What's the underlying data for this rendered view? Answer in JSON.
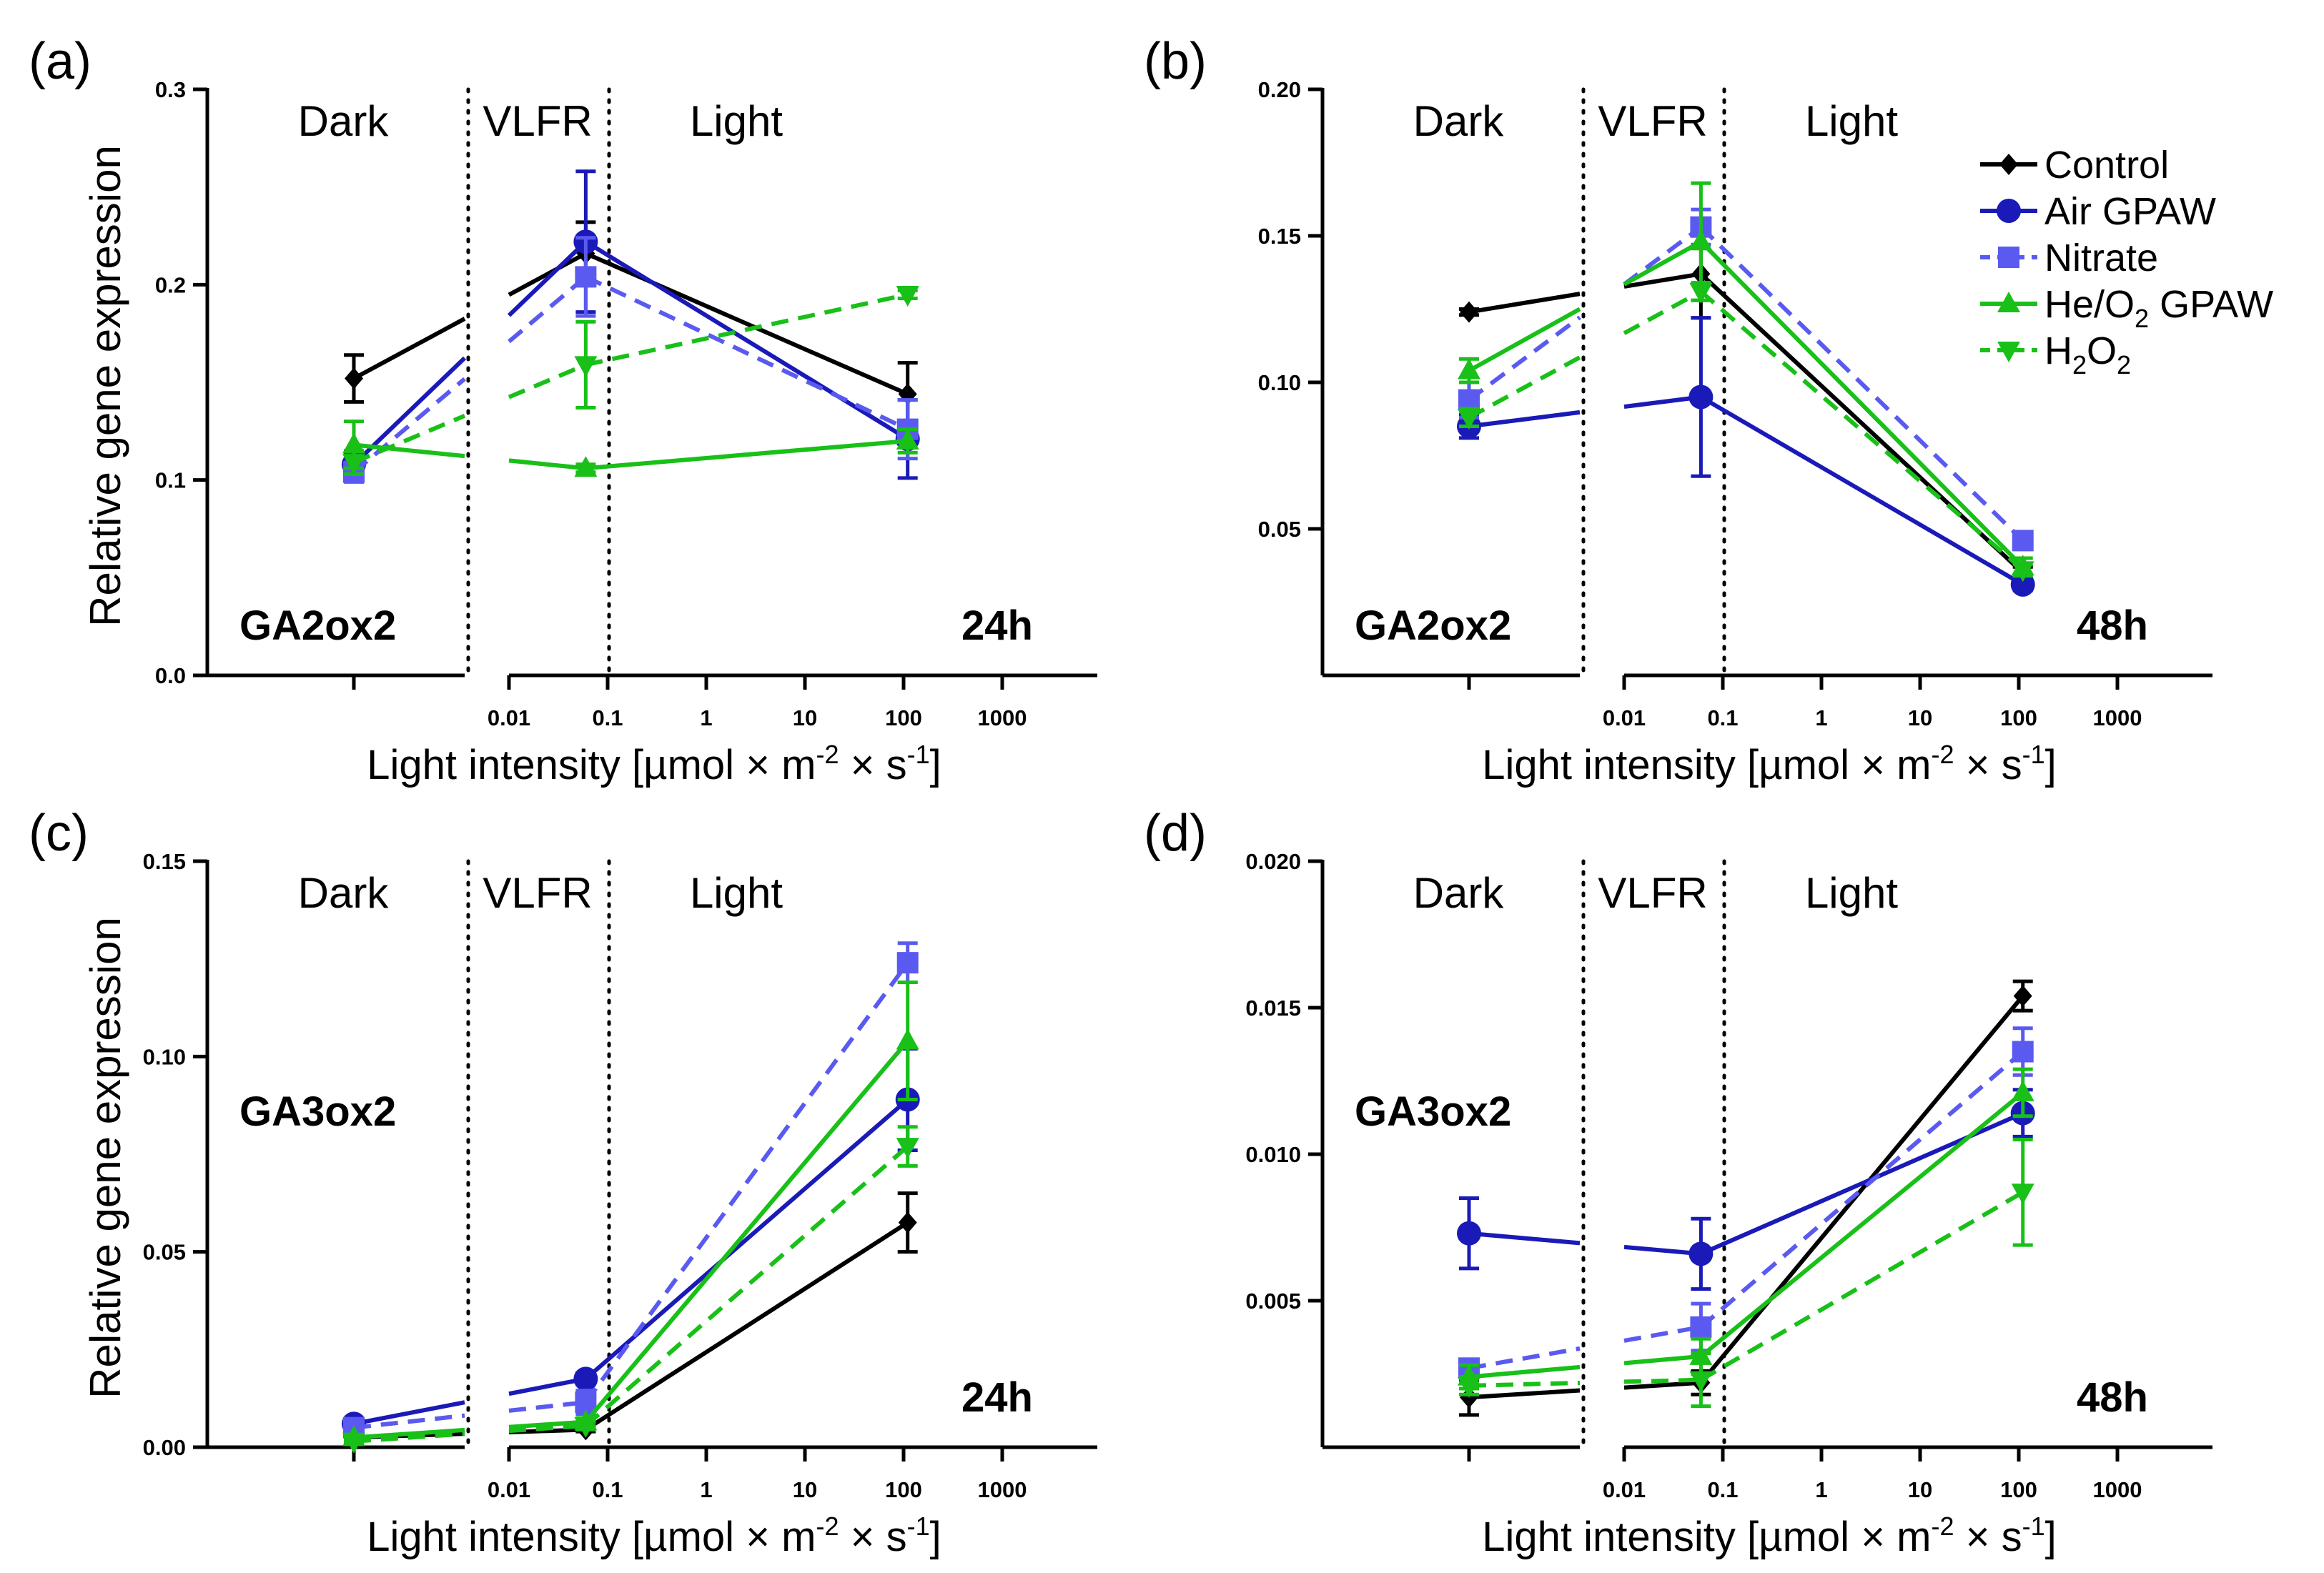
{
  "colors": {
    "Control": "#000000",
    "Air GPAW": "#1a1ab8",
    "Nitrate": "#5a5af0",
    "He/O2 GPAW": "#18c018",
    "H2O2": "#18c018"
  },
  "region_labels": {
    "dark": "Dark",
    "vlfr": "VLFR",
    "light": "Light"
  },
  "x_axis": {
    "label_main": "Light intensity [µmol × m",
    "label_sup1": "-2",
    "label_mid": " × s",
    "label_sup2": "-1",
    "label_end": "]",
    "ticks": [
      "0.01",
      "0.1",
      "1",
      "10",
      "100",
      "1000"
    ]
  },
  "y_axis_label": "Relative gene expression",
  "legend": {
    "position": "top-right of panel (b)",
    "entries": [
      {
        "key": "Control",
        "label": "Control",
        "marker": "diamond",
        "dash": false
      },
      {
        "key": "Air GPAW",
        "label": "Air GPAW",
        "marker": "circle",
        "dash": false
      },
      {
        "key": "Nitrate",
        "label": "Nitrate",
        "marker": "square",
        "dash": true
      },
      {
        "key": "He/O2 GPAW",
        "label_a": "He/O",
        "label_sub": "2",
        "label_b": " GPAW",
        "marker": "triangle-up",
        "dash": false
      },
      {
        "key": "H2O2",
        "label_a": "H",
        "label_sub": "2",
        "label_b": "O",
        "label_sub2": "2",
        "marker": "triangle-down",
        "dash": true
      }
    ]
  },
  "chart_data": [
    {
      "type": "line",
      "panel": "(a)",
      "gene": "GA2ox2",
      "time": "24h",
      "ylim": [
        0,
        0.3
      ],
      "yticks": [
        "0.0",
        "0.1",
        "0.2",
        "0.3"
      ],
      "ytick_values": [
        0,
        0.1,
        0.2,
        0.3
      ],
      "x": [
        "dark",
        0.06,
        110
      ],
      "series": [
        {
          "name": "Control",
          "values": [
            0.152,
            0.216,
            0.144
          ],
          "errors": [
            0.012,
            0.016,
            0.016
          ]
        },
        {
          "name": "Air GPAW",
          "values": [
            0.108,
            0.222,
            0.121
          ],
          "errors": [
            0.006,
            0.036,
            0.02
          ]
        },
        {
          "name": "Nitrate",
          "values": [
            0.104,
            0.204,
            0.126
          ],
          "errors": [
            0.005,
            0.02,
            0.015
          ]
        },
        {
          "name": "He/O2 GPAW",
          "values": [
            0.118,
            0.106,
            0.12
          ],
          "errors": [
            0.012,
            0.002,
            0.006
          ]
        },
        {
          "name": "H2O2",
          "values": [
            0.109,
            0.159,
            0.195
          ],
          "errors": [
            0.006,
            0.022,
            0.002
          ]
        }
      ]
    },
    {
      "type": "line",
      "panel": "(b)",
      "gene": "GA2ox2",
      "time": "48h",
      "ylim": [
        0,
        0.2
      ],
      "yticks": [
        "0.05",
        "0.10",
        "0.15",
        "0.20"
      ],
      "ytick_values": [
        0.05,
        0.1,
        0.15,
        0.2
      ],
      "x": [
        "dark",
        0.06,
        110
      ],
      "series": [
        {
          "name": "Control",
          "values": [
            0.124,
            0.137,
            0.035
          ],
          "errors": [
            0.001,
            0.015,
            0.002
          ]
        },
        {
          "name": "Air GPAW",
          "values": [
            0.085,
            0.095,
            0.031
          ],
          "errors": [
            0.004,
            0.027,
            0.002
          ]
        },
        {
          "name": "Nitrate",
          "values": [
            0.094,
            0.153,
            0.046
          ],
          "errors": [
            0.006,
            0.006,
            0.002
          ]
        },
        {
          "name": "He/O2 GPAW",
          "values": [
            0.104,
            0.148,
            0.037
          ],
          "errors": [
            0.004,
            0.02,
            0.003
          ]
        },
        {
          "name": "H2O2",
          "values": [
            0.088,
            0.131,
            0.036
          ],
          "errors": [
            0.003,
            0.003,
            0.002
          ]
        }
      ]
    },
    {
      "type": "line",
      "panel": "(c)",
      "gene": "GA3ox2",
      "time": "24h",
      "ylim": [
        0,
        0.15
      ],
      "yticks": [
        "0.00",
        "0.05",
        "0.10",
        "0.15"
      ],
      "ytick_values": [
        0,
        0.05,
        0.1,
        0.15
      ],
      "x": [
        "dark",
        0.06,
        110
      ],
      "series": [
        {
          "name": "Control",
          "values": [
            0.0025,
            0.0045,
            0.0575
          ],
          "errors": [
            0.0005,
            0.0005,
            0.0075
          ]
        },
        {
          "name": "Air GPAW",
          "values": [
            0.006,
            0.0175,
            0.089
          ],
          "errors": [
            0.001,
            0.0015,
            0.013
          ]
        },
        {
          "name": "Nitrate",
          "values": [
            0.005,
            0.0115,
            0.124
          ],
          "errors": [
            0.0005,
            0.003,
            0.005
          ]
        },
        {
          "name": "He/O2 GPAW",
          "values": [
            0.0025,
            0.0065,
            0.104
          ],
          "errors": [
            0.0005,
            0.001,
            0.015
          ]
        },
        {
          "name": "H2O2",
          "values": [
            0.0015,
            0.0055,
            0.077
          ],
          "errors": [
            0.0005,
            0.001,
            0.005
          ]
        }
      ]
    },
    {
      "type": "line",
      "panel": "(d)",
      "gene": "GA3ox2",
      "time": "48h",
      "ylim": [
        0,
        0.02
      ],
      "yticks": [
        "0.005",
        "0.010",
        "0.015",
        "0.020"
      ],
      "ytick_values": [
        0.005,
        0.01,
        0.015,
        0.02
      ],
      "x": [
        "dark",
        0.06,
        110
      ],
      "series": [
        {
          "name": "Control",
          "values": [
            0.0017,
            0.0022,
            0.0154
          ],
          "errors": [
            0.0006,
            0.0004,
            0.0005
          ]
        },
        {
          "name": "Air GPAW",
          "values": [
            0.0073,
            0.0066,
            0.0114
          ],
          "errors": [
            0.0012,
            0.0012,
            0.0008
          ]
        },
        {
          "name": "Nitrate",
          "values": [
            0.0027,
            0.0041,
            0.0135
          ],
          "errors": [
            0.0003,
            0.0008,
            0.0008
          ]
        },
        {
          "name": "He/O2 GPAW",
          "values": [
            0.0024,
            0.0031,
            0.0121
          ],
          "errors": [
            0.0004,
            0.0006,
            0.0008
          ]
        },
        {
          "name": "H2O2",
          "values": [
            0.0021,
            0.0023,
            0.0087
          ],
          "errors": [
            0.0003,
            0.0009,
            0.0018
          ]
        }
      ]
    }
  ]
}
